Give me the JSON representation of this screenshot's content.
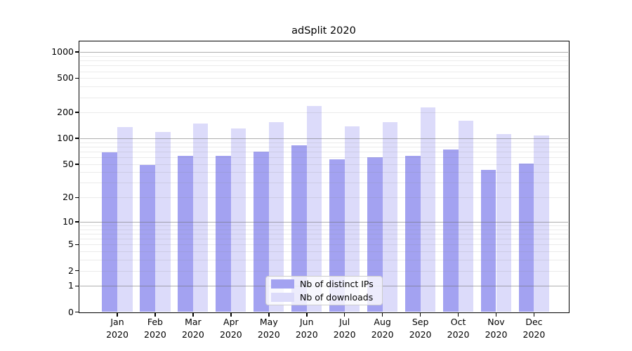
{
  "title": "adSplit 2020",
  "chart_data": {
    "type": "bar",
    "title": "adSplit 2020",
    "categories": [
      "Jan 2020",
      "Feb 2020",
      "Mar 2020",
      "Apr 2020",
      "May 2020",
      "Jun 2020",
      "Jul 2020",
      "Aug 2020",
      "Sep 2020",
      "Oct 2020",
      "Nov 2020",
      "Dec 2020"
    ],
    "series": [
      {
        "name": "Nb of distinct IPs",
        "color": "#a3a2f1",
        "values": [
          69,
          49,
          62,
          63,
          70,
          83,
          57,
          60,
          62,
          74,
          43,
          51
        ]
      },
      {
        "name": "Nb of downloads",
        "color": "#dcdbfa",
        "values": [
          135,
          118,
          148,
          130,
          155,
          240,
          137,
          155,
          230,
          160,
          112,
          108
        ]
      }
    ],
    "xlabel": "",
    "ylabel": "",
    "yscale": "log10(1+x)",
    "ytick_labels": [
      0,
      1,
      2,
      5,
      10,
      20,
      50,
      100,
      200,
      500,
      1000
    ],
    "major_grid_values": [
      1,
      10,
      100,
      1000
    ],
    "minor_grid_values": [
      2,
      3,
      4,
      5,
      6,
      7,
      8,
      9,
      20,
      30,
      40,
      50,
      60,
      70,
      80,
      90,
      200,
      300,
      400,
      500,
      600,
      700,
      800,
      900
    ],
    "ylim": [
      0,
      1300
    ],
    "grid": "major+minor, drawn above bars",
    "legend_position": "lower center"
  },
  "colors": {
    "series_ips": "#a3a2f1",
    "series_downloads": "#dcdbfa",
    "axis": "#000000",
    "major_grid": "#b0b0b0",
    "minor_grid": "#e8e8e8",
    "legend_border": "#cccccc"
  }
}
